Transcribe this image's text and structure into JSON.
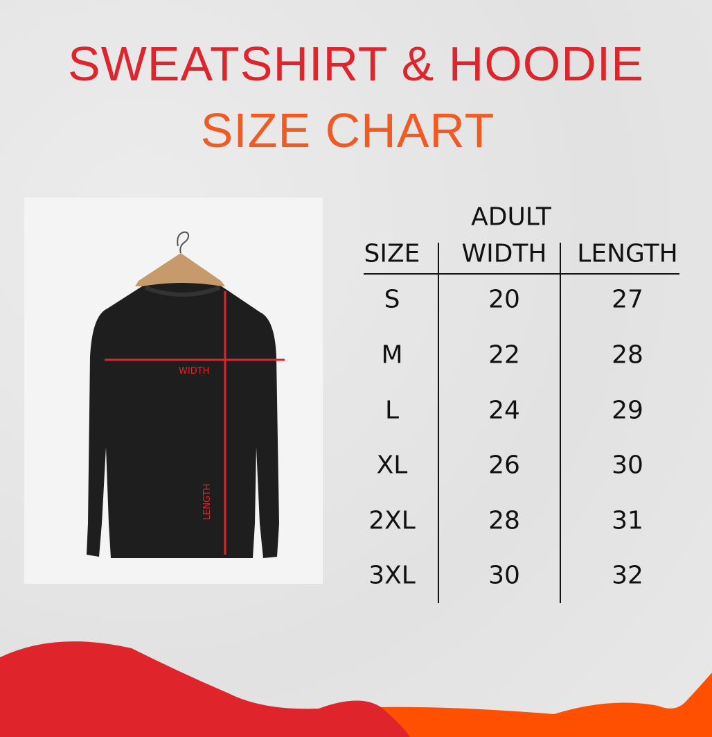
{
  "title": {
    "line1": "SWEATSHIRT & HOODIE",
    "line2": "SIZE CHART"
  },
  "colors": {
    "title_red": "#e0242c",
    "title_orange": "#f15a22",
    "wave_red": "#e0242c",
    "wave_orange": "#fe5000"
  },
  "diagram": {
    "width_label": "WIDTH",
    "length_label": "LENGTH"
  },
  "table": {
    "header_top": "ADULT",
    "headers": [
      "SIZE",
      "WIDTH",
      "LENGTH"
    ],
    "rows": [
      [
        "S",
        "20",
        "27"
      ],
      [
        "M",
        "22",
        "28"
      ],
      [
        "L",
        "24",
        "29"
      ],
      [
        "XL",
        "26",
        "30"
      ],
      [
        "2XL",
        "28",
        "31"
      ],
      [
        "3XL",
        "30",
        "32"
      ]
    ]
  }
}
